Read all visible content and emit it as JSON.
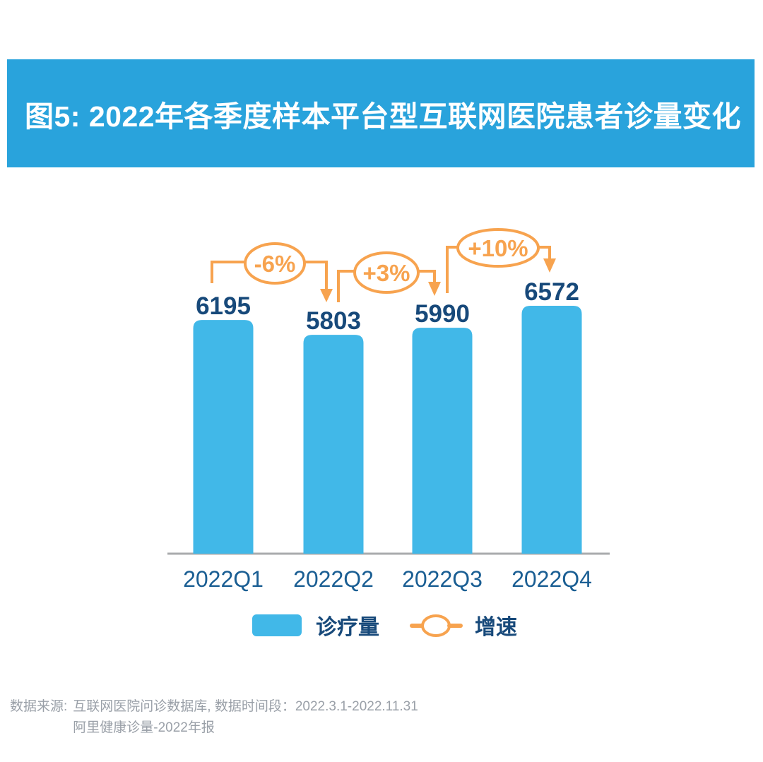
{
  "header": {
    "title": "图5: 2022年各季度样本平台型互联网医院患者诊量变化"
  },
  "chart_data": {
    "type": "bar",
    "title": "图5: 2022年各季度样本平台型互联网医院患者诊量变化",
    "categories": [
      "2022Q1",
      "2022Q2",
      "2022Q3",
      "2022Q4"
    ],
    "series": [
      {
        "name": "诊疗量",
        "type": "bar",
        "color": "#41B8E8",
        "values": [
          6195,
          5803,
          5990,
          6572
        ]
      },
      {
        "name": "增速",
        "type": "growth-annotation",
        "color": "#F7A34F",
        "values": [
          "-6%",
          "+3%",
          "+10%"
        ],
        "between": [
          [
            "2022Q1",
            "2022Q2"
          ],
          [
            "2022Q2",
            "2022Q3"
          ],
          [
            "2022Q3",
            "2022Q4"
          ]
        ]
      }
    ],
    "xlabel": "",
    "ylabel": "",
    "ylim": [
      0,
      7000
    ],
    "grid": false,
    "data_labels": true,
    "legend_position": "bottom"
  },
  "colors": {
    "header_bg": "#29A3DC",
    "bar": "#41B8E8",
    "accent_orange": "#F7A34F",
    "value_text": "#17497A",
    "axis_text": "#1A5E93",
    "axis_line": "#A9ABAD",
    "footer_text": "#9AA0A8"
  },
  "footer": {
    "label": "数据来源:",
    "line1": "互联网医院问诊数据库, 数据时间段：2022.3.1-2022.11.31",
    "line2": "阿里健康诊量-2022年报"
  }
}
